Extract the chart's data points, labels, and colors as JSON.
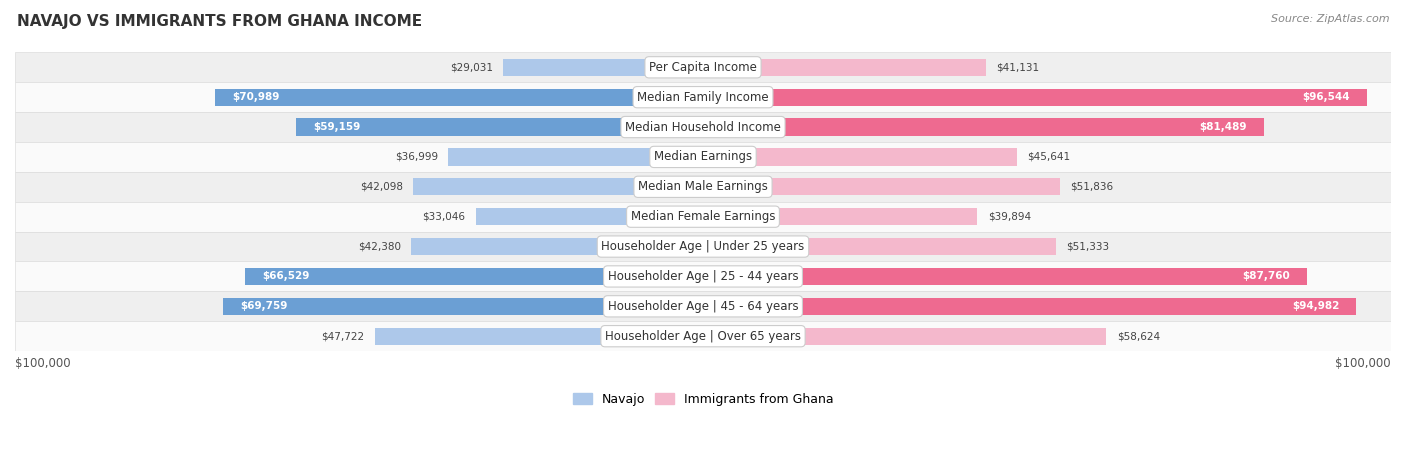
{
  "title": "NAVAJO VS IMMIGRANTS FROM GHANA INCOME",
  "source": "Source: ZipAtlas.com",
  "categories": [
    "Per Capita Income",
    "Median Family Income",
    "Median Household Income",
    "Median Earnings",
    "Median Male Earnings",
    "Median Female Earnings",
    "Householder Age | Under 25 years",
    "Householder Age | 25 - 44 years",
    "Householder Age | 45 - 64 years",
    "Householder Age | Over 65 years"
  ],
  "navajo_values": [
    29031,
    70989,
    59159,
    36999,
    42098,
    33046,
    42380,
    66529,
    69759,
    47722
  ],
  "ghana_values": [
    41131,
    96544,
    81489,
    45641,
    51836,
    39894,
    51333,
    87760,
    94982,
    58624
  ],
  "navajo_labels": [
    "$29,031",
    "$70,989",
    "$59,159",
    "$36,999",
    "$42,098",
    "$33,046",
    "$42,380",
    "$66,529",
    "$69,759",
    "$47,722"
  ],
  "ghana_labels": [
    "$41,131",
    "$96,544",
    "$81,489",
    "$45,641",
    "$51,836",
    "$39,894",
    "$51,333",
    "$87,760",
    "$94,982",
    "$58,624"
  ],
  "navajo_color_light": "#ADC8EA",
  "navajo_color_dark": "#6B9FD4",
  "ghana_color_light": "#F4B8CC",
  "ghana_color_dark": "#EE6A90",
  "navajo_inside_threshold": 55000,
  "ghana_inside_threshold": 75000,
  "max_value": 100000,
  "bar_height": 0.58,
  "navajo_legend": "Navajo",
  "ghana_legend": "Immigrants from Ghana",
  "axis_label_left": "$100,000",
  "axis_label_right": "$100,000",
  "row_color_odd": "#EFEFEF",
  "row_color_even": "#FAFAFA"
}
